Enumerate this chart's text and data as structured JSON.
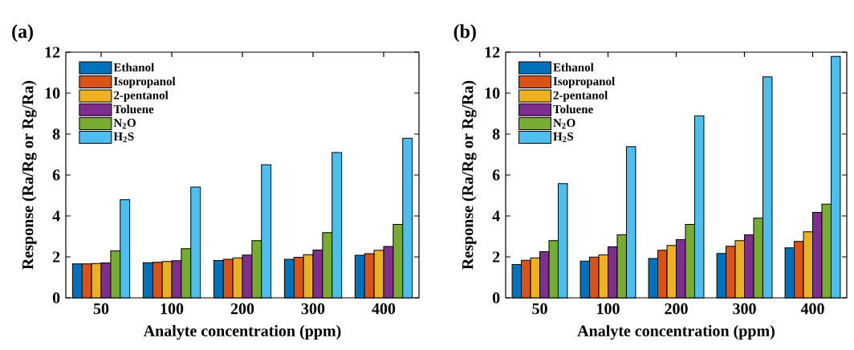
{
  "chart_data": [
    {
      "type": "bar",
      "title": "(a)",
      "xlabel": "Analyte concentration (ppm)",
      "ylabel": "Response (Ra/Rg or Rg/Ra)",
      "categories": [
        "50",
        "100",
        "200",
        "300",
        "400"
      ],
      "ylim": [
        0,
        12
      ],
      "yticks": [
        0,
        2,
        4,
        6,
        8,
        10,
        12
      ],
      "legend": "top left",
      "series": [
        {
          "name": "Ethanol",
          "color": "#0072bd",
          "values": [
            1.66,
            1.72,
            1.82,
            1.88,
            2.08
          ]
        },
        {
          "name": "Isopropanol",
          "color": "#d95319",
          "values": [
            1.66,
            1.74,
            1.88,
            1.98,
            2.16
          ]
        },
        {
          "name": "2-pentanol",
          "color": "#edb120",
          "values": [
            1.68,
            1.77,
            1.95,
            2.11,
            2.32
          ]
        },
        {
          "name": "Toluene",
          "color": "#7e2f8e",
          "values": [
            1.71,
            1.81,
            2.09,
            2.33,
            2.51
          ]
        },
        {
          "name": "N$_{2}$O",
          "color": "#77ac30",
          "values": [
            2.29,
            2.4,
            2.79,
            3.19,
            3.59
          ]
        },
        {
          "name": "H$_{2}$S",
          "color": "#4dbeee",
          "values": [
            4.79,
            5.41,
            6.5,
            7.1,
            7.79
          ]
        }
      ]
    },
    {
      "type": "bar",
      "title": "(b)",
      "xlabel": "Analyte concentration (ppm)",
      "ylabel": "Response (Ra/Rg or Rg/Ra)",
      "categories": [
        "50",
        "100",
        "200",
        "300",
        "400"
      ],
      "ylim": [
        0,
        12
      ],
      "yticks": [
        0,
        2,
        4,
        6,
        8,
        10,
        12
      ],
      "legend": "top left",
      "series": [
        {
          "name": "Ethanol",
          "color": "#0072bd",
          "values": [
            1.63,
            1.79,
            1.92,
            2.17,
            2.44
          ]
        },
        {
          "name": "Isopropanol",
          "color": "#d95319",
          "values": [
            1.83,
            1.99,
            2.32,
            2.52,
            2.75
          ]
        },
        {
          "name": "2-pentanol",
          "color": "#edb120",
          "values": [
            1.95,
            2.1,
            2.56,
            2.79,
            3.23
          ]
        },
        {
          "name": "Toluene",
          "color": "#7e2f8e",
          "values": [
            2.25,
            2.49,
            2.84,
            3.08,
            4.18
          ]
        },
        {
          "name": "N$_{2}$O",
          "color": "#77ac30",
          "values": [
            2.79,
            3.08,
            3.59,
            3.89,
            4.58
          ]
        },
        {
          "name": "H$_{2}$S",
          "color": "#4dbeee",
          "values": [
            5.58,
            7.38,
            8.89,
            10.79,
            11.79
          ]
        }
      ]
    }
  ]
}
